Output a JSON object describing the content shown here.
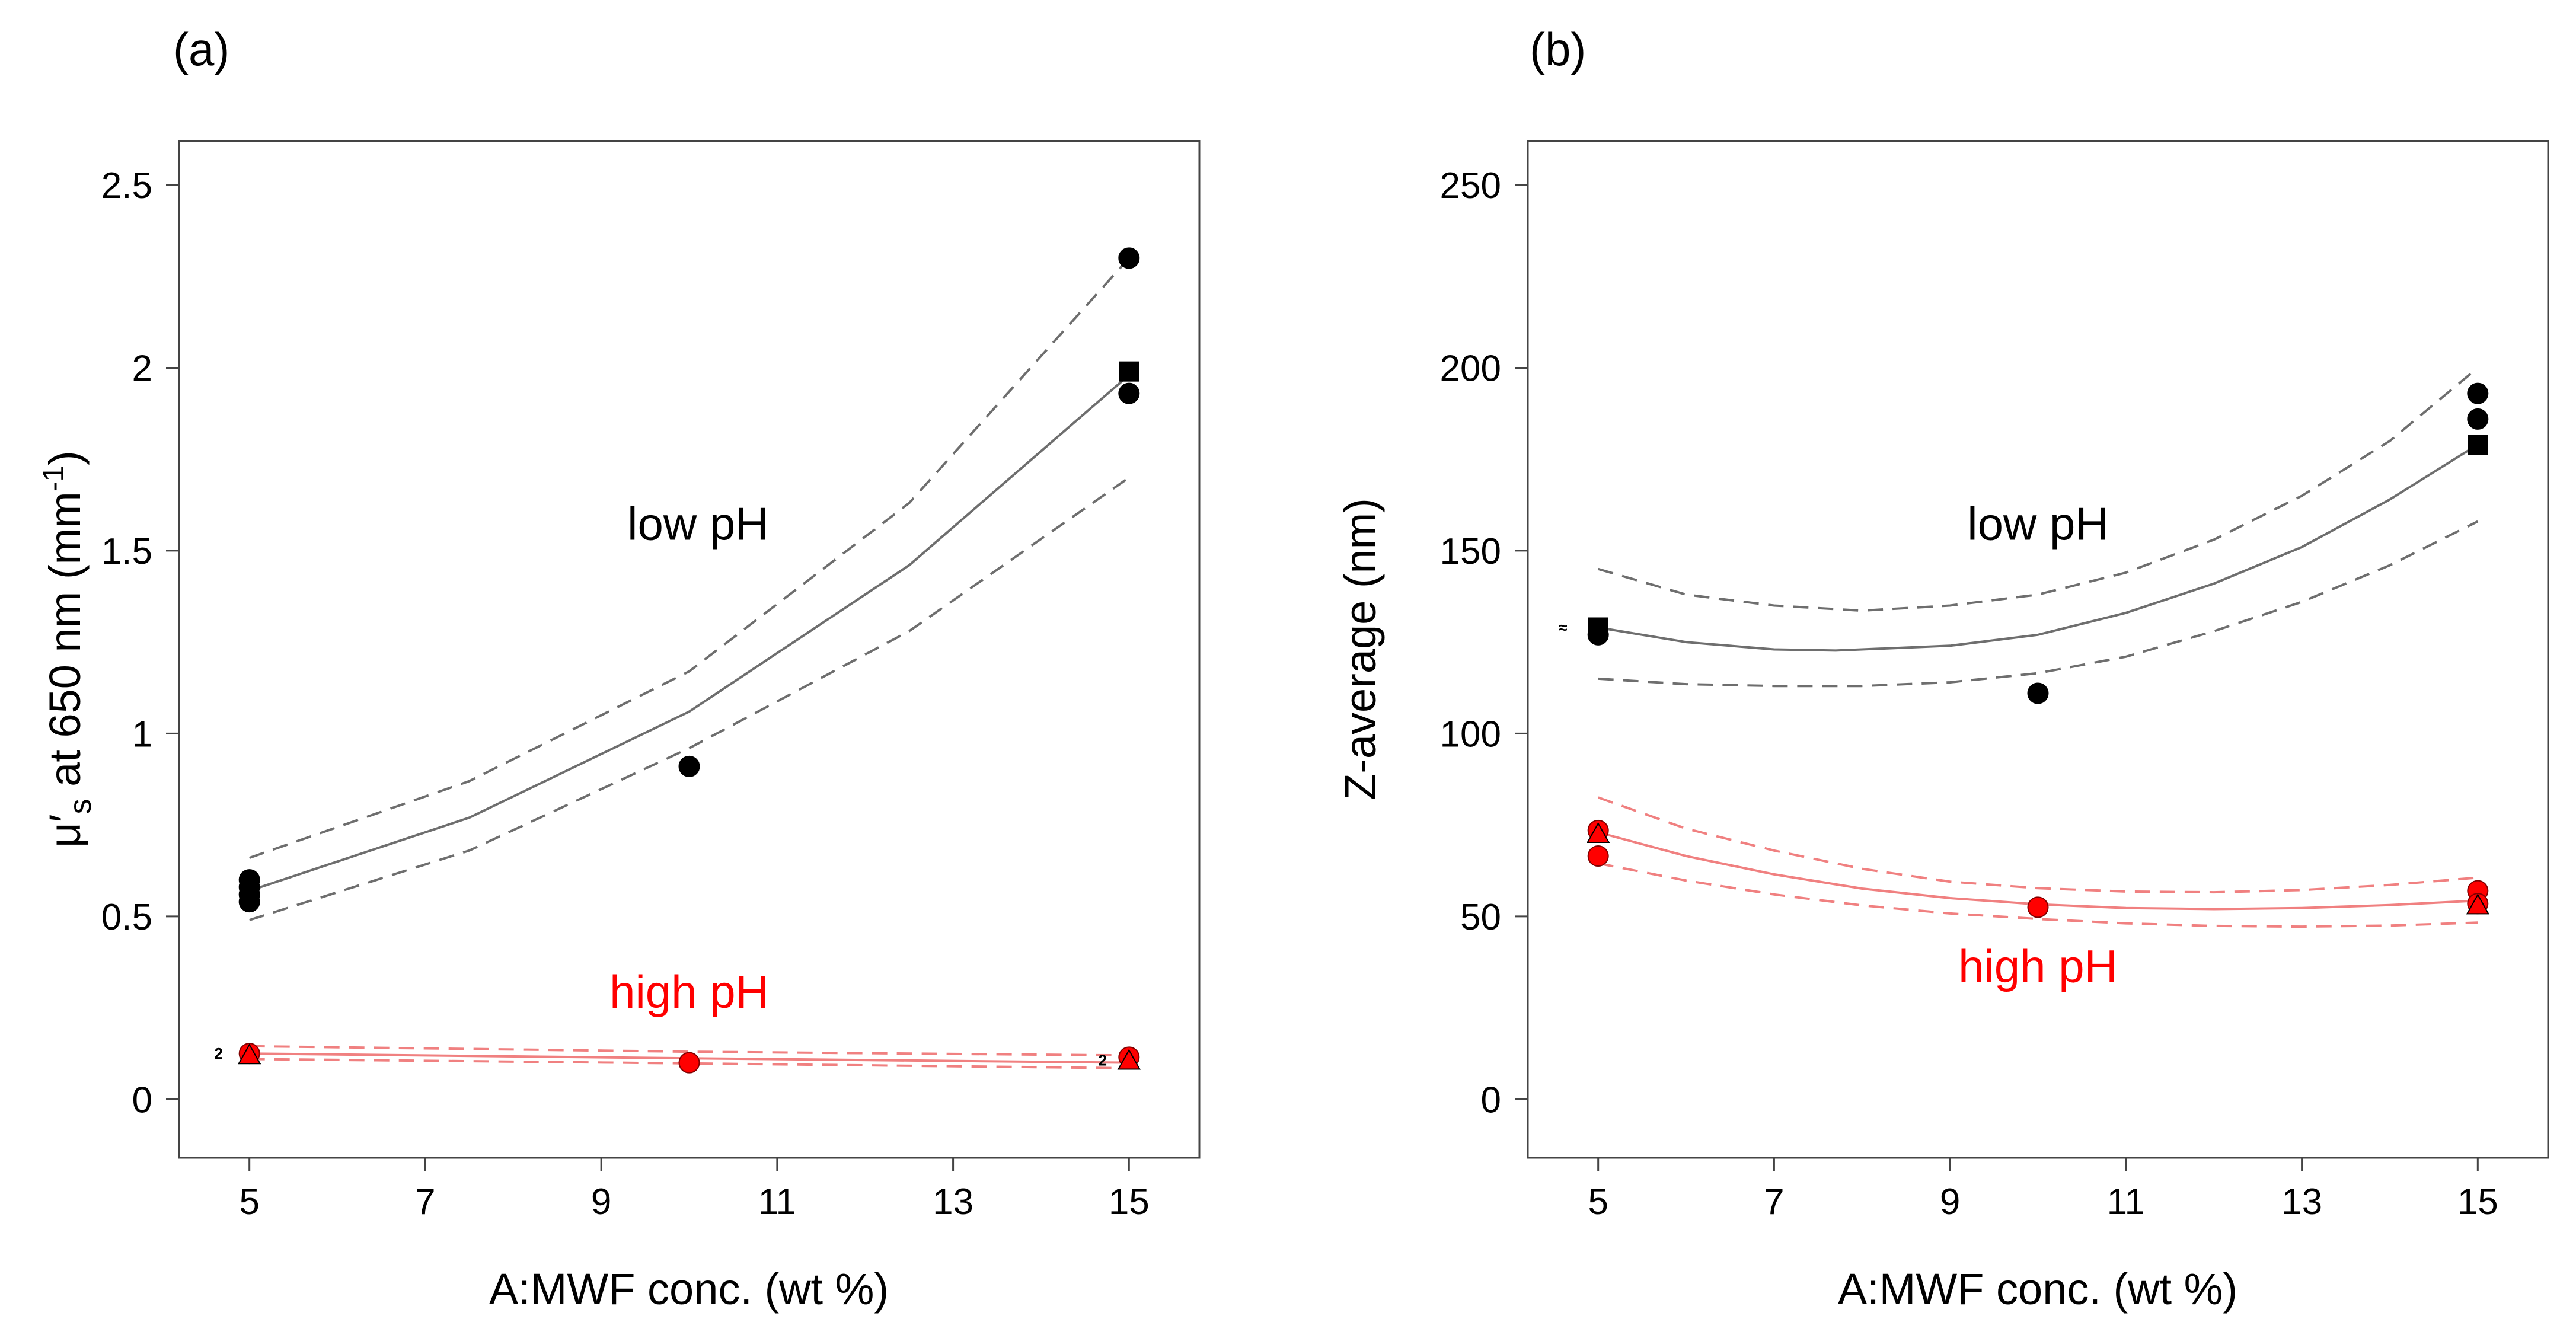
{
  "colors": {
    "low_pH": "#000000",
    "low_pH_line": "#6e6e6e",
    "high_pH": "#ff0000",
    "high_pH_line": "#f08080",
    "frame": "#444444"
  },
  "chart_data": [
    {
      "type": "scatter",
      "panel_label": "(a)",
      "xlabel": "A:MWF conc. (wt %)",
      "ylabel": "μ′s at 650 nm (mm-1)",
      "ylabel_parts": {
        "main": "μ′",
        "sub": "s",
        "mid": " at 650 nm (mm",
        "sup": "-1",
        "end": ")"
      },
      "xlim": [
        4.2,
        15.8
      ],
      "ylim": [
        -0.16,
        2.62
      ],
      "xticks": [
        5,
        7,
        9,
        11,
        13,
        15
      ],
      "yticks": [
        0,
        0.5,
        1,
        1.5,
        2,
        2.5
      ],
      "ytick_labels": [
        "0",
        "0.5",
        "1",
        "1.5",
        "2",
        "2.5"
      ],
      "grid": false,
      "annotations": [
        {
          "text": "low pH",
          "x": 10.1,
          "y": 1.53,
          "series": "low_pH"
        },
        {
          "text": "high pH",
          "x": 10.0,
          "y": 0.25,
          "series": "high_pH"
        }
      ],
      "replicate_labels": [
        {
          "text": "2",
          "x": 4.65,
          "y": 0.125
        },
        {
          "text": "2",
          "x": 14.7,
          "y": 0.107
        }
      ],
      "series": [
        {
          "key": "low_pH",
          "points": [
            {
              "x": 5,
              "y": 0.6,
              "marker": "circle"
            },
            {
              "x": 5,
              "y": 0.58,
              "marker": "circle"
            },
            {
              "x": 5,
              "y": 0.56,
              "marker": "circle"
            },
            {
              "x": 5,
              "y": 0.54,
              "marker": "circle"
            },
            {
              "x": 10,
              "y": 0.91,
              "marker": "circle"
            },
            {
              "x": 15,
              "y": 2.3,
              "marker": "circle"
            },
            {
              "x": 15,
              "y": 1.99,
              "marker": "square"
            },
            {
              "x": 15,
              "y": 1.93,
              "marker": "circle"
            }
          ],
          "fit": {
            "x": [
              5,
              7.5,
              10,
              12.5,
              15
            ],
            "y": [
              0.57,
              0.77,
              1.06,
              1.46,
              1.98
            ]
          },
          "ci_upper": {
            "x": [
              5,
              7.5,
              10,
              12.5,
              15
            ],
            "y": [
              0.66,
              0.87,
              1.17,
              1.63,
              2.3
            ]
          },
          "ci_lower": {
            "x": [
              5,
              7.5,
              10,
              12.5,
              15
            ],
            "y": [
              0.49,
              0.68,
              0.96,
              1.28,
              1.7
            ]
          }
        },
        {
          "key": "high_pH",
          "points": [
            {
              "x": 5,
              "y": 0.125,
              "marker": "circle"
            },
            {
              "x": 5,
              "y": 0.12,
              "marker": "triangle"
            },
            {
              "x": 10,
              "y": 0.1,
              "marker": "circle"
            },
            {
              "x": 15,
              "y": 0.115,
              "marker": "circle"
            },
            {
              "x": 15,
              "y": 0.105,
              "marker": "triangle"
            }
          ],
          "fit": {
            "x": [
              5,
              10,
              15
            ],
            "y": [
              0.125,
              0.112,
              0.1
            ]
          },
          "ci_upper": {
            "x": [
              5,
              10,
              15
            ],
            "y": [
              0.145,
              0.13,
              0.12
            ]
          },
          "ci_lower": {
            "x": [
              5,
              10,
              15
            ],
            "y": [
              0.11,
              0.098,
              0.085
            ]
          }
        }
      ]
    },
    {
      "type": "scatter",
      "panel_label": "(b)",
      "xlabel": "A:MWF conc. (wt %)",
      "ylabel": "Z-average (nm)",
      "xlim": [
        4.2,
        15.8
      ],
      "ylim": [
        -16,
        262
      ],
      "xticks": [
        5,
        7,
        9,
        11,
        13,
        15
      ],
      "yticks": [
        0,
        50,
        100,
        150,
        200,
        250
      ],
      "ytick_labels": [
        "0",
        "50",
        "100",
        "150",
        "200",
        "250"
      ],
      "grid": false,
      "annotations": [
        {
          "text": "low pH",
          "x": 10.0,
          "y": 153,
          "series": "low_pH"
        },
        {
          "text": "high pH",
          "x": 10.0,
          "y": 32,
          "series": "high_pH"
        }
      ],
      "replicate_labels": [
        {
          "text": "≈",
          "x": 4.6,
          "y": 129
        }
      ],
      "series": [
        {
          "key": "low_pH",
          "points": [
            {
              "x": 5,
              "y": 129,
              "marker": "square"
            },
            {
              "x": 5,
              "y": 127,
              "marker": "circle"
            },
            {
              "x": 10,
              "y": 111,
              "marker": "circle"
            },
            {
              "x": 15,
              "y": 193,
              "marker": "circle"
            },
            {
              "x": 15,
              "y": 186,
              "marker": "circle"
            },
            {
              "x": 15,
              "y": 179,
              "marker": "square"
            }
          ],
          "fit": {
            "x": [
              5,
              6,
              7,
              7.7,
              9,
              10,
              11,
              12,
              13,
              14,
              15
            ],
            "y": [
              129,
              125,
              123,
              122.7,
              124,
              127,
              133,
              141,
              151,
              164,
              179
            ]
          },
          "ci_upper": {
            "x": [
              5,
              6,
              7,
              8,
              9,
              10,
              11,
              12,
              13,
              14,
              15
            ],
            "y": [
              145,
              138,
              135,
              133.6,
              135,
              138,
              144,
              153,
              165,
              180,
              200
            ]
          },
          "ci_lower": {
            "x": [
              5,
              6,
              7,
              8,
              9,
              10,
              11,
              12,
              13,
              14,
              15
            ],
            "y": [
              115,
              113.5,
              113,
              113,
              114,
              116.5,
              121,
              128,
              136,
              146,
              158
            ]
          }
        },
        {
          "key": "high_pH",
          "points": [
            {
              "x": 5,
              "y": 73.5,
              "marker": "circle"
            },
            {
              "x": 5,
              "y": 72.5,
              "marker": "triangle"
            },
            {
              "x": 5,
              "y": 66.5,
              "marker": "circle"
            },
            {
              "x": 10,
              "y": 52.5,
              "marker": "circle"
            },
            {
              "x": 15,
              "y": 57,
              "marker": "circle"
            },
            {
              "x": 15,
              "y": 53.5,
              "marker": "circle"
            },
            {
              "x": 15,
              "y": 53,
              "marker": "triangle"
            }
          ],
          "fit": {
            "x": [
              5,
              6,
              7,
              8,
              9,
              10,
              11,
              12,
              13,
              14,
              15
            ],
            "y": [
              73,
              66.5,
              61.5,
              57.6,
              55,
              53.3,
              52.3,
              52,
              52.3,
              53.1,
              54.3
            ]
          },
          "ci_upper": {
            "x": [
              5,
              6,
              7,
              8,
              9,
              10,
              11,
              12,
              13,
              14,
              15
            ],
            "y": [
              82.5,
              74,
              68,
              63,
              59.5,
              57.7,
              56.8,
              56.6,
              57.2,
              58.6,
              60.6
            ]
          },
          "ci_lower": {
            "x": [
              5,
              6,
              7,
              8,
              9,
              10,
              11,
              12,
              13,
              14,
              15
            ],
            "y": [
              64.5,
              59.8,
              56,
              53,
              50.8,
              49.3,
              48.1,
              47.4,
              47.2,
              47.5,
              48.3
            ]
          }
        }
      ]
    }
  ]
}
